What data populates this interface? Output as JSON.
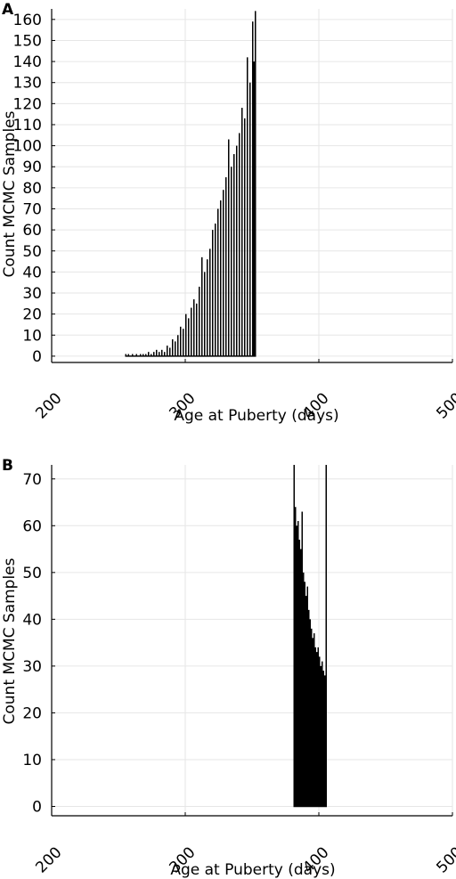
{
  "chart_data": [
    {
      "panel": "A",
      "type": "bar",
      "xlabel": "Age at Puberty (days)",
      "ylabel": "Count MCMC Samples",
      "xlim": [
        200,
        500
      ],
      "ylim": [
        -3,
        165
      ],
      "xticks": [
        200,
        300,
        400,
        500
      ],
      "yticks": [
        0,
        10,
        20,
        30,
        40,
        50,
        60,
        70,
        80,
        90,
        100,
        110,
        120,
        130,
        140,
        150,
        160
      ],
      "grid": true,
      "legend": "none",
      "bin_width": 1,
      "x": [
        255,
        257,
        260,
        263,
        266,
        268,
        270,
        272,
        274,
        276,
        278,
        280,
        282,
        284,
        286,
        288,
        290,
        292,
        294,
        296,
        298,
        300,
        302,
        304,
        306,
        308,
        310,
        312,
        314,
        316,
        318,
        320,
        322,
        324,
        326,
        328,
        330,
        332,
        334,
        336,
        338,
        340,
        342,
        344,
        346,
        348,
        350,
        351,
        352
      ],
      "values": [
        1,
        1,
        1,
        1,
        1,
        1,
        1,
        2,
        1,
        2,
        3,
        2,
        3,
        2,
        5,
        4,
        8,
        7,
        10,
        14,
        13,
        20,
        18,
        23,
        27,
        25,
        33,
        47,
        40,
        46,
        51,
        60,
        63,
        70,
        74,
        79,
        85,
        103,
        90,
        96,
        100,
        106,
        118,
        113,
        142,
        130,
        159,
        140,
        164
      ]
    },
    {
      "panel": "B",
      "type": "bar",
      "xlabel": "Age at Puberty (days)",
      "ylabel": "Count MCMC Samples",
      "xlim": [
        200,
        500
      ],
      "ylim": [
        -2,
        73
      ],
      "xticks": [
        200,
        300,
        400,
        500
      ],
      "yticks": [
        0,
        10,
        20,
        30,
        40,
        50,
        60,
        70
      ],
      "grid": true,
      "legend": "none",
      "bin_width": 1,
      "x": [
        381,
        382,
        383,
        384,
        385,
        386,
        387,
        388,
        389,
        390,
        391,
        392,
        393,
        394,
        395,
        396,
        397,
        398,
        399,
        400,
        401,
        402,
        403,
        404,
        405
      ],
      "values": [
        73,
        64,
        60,
        61,
        57,
        55,
        63,
        50,
        48,
        45,
        47,
        42,
        40,
        38,
        36,
        37,
        34,
        33,
        34,
        32,
        30,
        31,
        29,
        28,
        73
      ]
    }
  ]
}
